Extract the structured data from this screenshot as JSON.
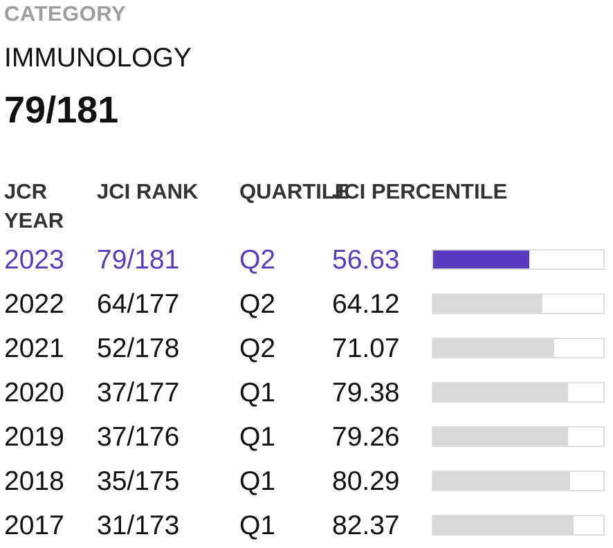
{
  "category": {
    "label": "CATEGORY",
    "name": "IMMUNOLOGY",
    "rank": "79/181"
  },
  "table": {
    "headers": {
      "year": "JCR YEAR",
      "rank": "JCI RANK",
      "quartile": "QUARTILE",
      "percentile": "JCI PERCENTILE"
    },
    "rows": [
      {
        "year": "2023",
        "rank": "79/181",
        "quartile": "Q2",
        "percentile": "56.63",
        "percentile_value": 56.63,
        "current": true
      },
      {
        "year": "2022",
        "rank": "64/177",
        "quartile": "Q2",
        "percentile": "64.12",
        "percentile_value": 64.12,
        "current": false
      },
      {
        "year": "2021",
        "rank": "52/178",
        "quartile": "Q2",
        "percentile": "71.07",
        "percentile_value": 71.07,
        "current": false
      },
      {
        "year": "2020",
        "rank": "37/177",
        "quartile": "Q1",
        "percentile": "79.38",
        "percentile_value": 79.38,
        "current": false
      },
      {
        "year": "2019",
        "rank": "37/176",
        "quartile": "Q1",
        "percentile": "79.26",
        "percentile_value": 79.26,
        "current": false
      },
      {
        "year": "2018",
        "rank": "35/175",
        "quartile": "Q1",
        "percentile": "80.29",
        "percentile_value": 80.29,
        "current": false
      },
      {
        "year": "2017",
        "rank": "31/173",
        "quartile": "Q1",
        "percentile": "82.37",
        "percentile_value": 82.37,
        "current": false
      }
    ]
  },
  "colors": {
    "accent": "#5a3bbf",
    "bar_inactive": "#d9d9d9",
    "label_gray": "#9e9e9e"
  }
}
